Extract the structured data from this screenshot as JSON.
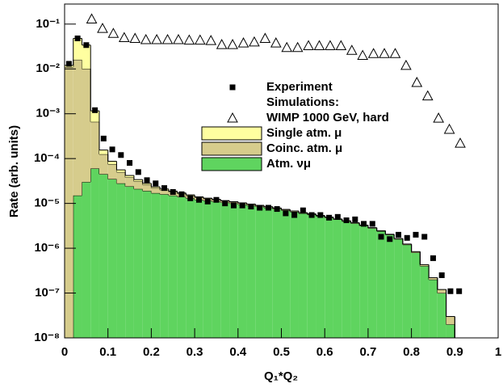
{
  "chart_data": {
    "type": "histogram",
    "x_label": "Q₁*Q₂",
    "y_label": "Rate (arb. units)",
    "xlim": [
      0,
      1
    ],
    "xticks": [
      0,
      0.1,
      0.2,
      0.3,
      0.4,
      0.5,
      0.6,
      0.7,
      0.8,
      0.9,
      1
    ],
    "log_y": true,
    "ylim": [
      1e-08,
      0.28
    ],
    "yticks": [
      {
        "value": 1e-08,
        "label": "10⁻⁸"
      },
      {
        "value": 1e-07,
        "label": "10⁻⁷"
      },
      {
        "value": 1e-06,
        "label": "10⁻⁶"
      },
      {
        "value": 1e-05,
        "label": "10⁻⁵"
      },
      {
        "value": 0.0001,
        "label": "10⁻⁴"
      },
      {
        "value": 0.001,
        "label": "10⁻³"
      },
      {
        "value": 0.01,
        "label": "10⁻²"
      },
      {
        "value": 0.1,
        "label": "10⁻¹"
      }
    ],
    "bins": [
      0,
      0.02,
      0.04,
      0.06,
      0.08,
      0.1,
      0.12,
      0.14,
      0.16,
      0.18,
      0.2,
      0.22,
      0.24,
      0.26,
      0.28,
      0.3,
      0.32,
      0.34,
      0.36,
      0.38,
      0.4,
      0.42,
      0.44,
      0.46,
      0.48,
      0.5,
      0.52,
      0.54,
      0.56,
      0.58,
      0.6,
      0.62,
      0.64,
      0.66,
      0.68,
      0.7,
      0.72,
      0.74,
      0.76,
      0.78,
      0.8,
      0.82,
      0.84,
      0.86,
      0.88,
      0.9,
      0.92
    ],
    "series": [
      {
        "name": "Single atm. μ",
        "color": "#ffffa0",
        "values": [
          0.001,
          0.032,
          0.024,
          0.0005,
          3e-05,
          1.2e-05,
          6e-06,
          4e-06,
          3e-06,
          2e-06,
          1.5e-06,
          1e-06,
          8e-07,
          6e-07,
          5e-07,
          4e-07,
          3e-07,
          2e-07,
          1.5e-07,
          1e-07,
          8e-08,
          6e-08,
          5e-08,
          4e-08,
          3e-08,
          2e-08,
          2e-08,
          1e-08,
          1e-08,
          1e-08,
          0,
          0,
          0,
          0,
          0,
          0,
          0,
          0,
          0,
          0,
          0,
          0,
          0,
          0,
          0,
          0
        ]
      },
      {
        "name": "Coinc. atm. μ",
        "color": "#d6cc8c",
        "values": [
          0.011,
          0.016,
          0.01,
          0.0006,
          8e-05,
          4e-05,
          2.2e-05,
          1.4e-05,
          1e-05,
          7e-06,
          5e-06,
          4e-06,
          3e-06,
          2.5e-06,
          2e-06,
          1.6e-06,
          1.3e-06,
          1.1e-06,
          9e-07,
          8e-07,
          7e-07,
          6e-07,
          5e-07,
          4e-07,
          3.5e-07,
          3e-07,
          2.5e-07,
          2e-07,
          2e-07,
          1.5e-07,
          1.5e-07,
          1e-07,
          1e-07,
          1e-07,
          8e-08,
          8e-08,
          6e-08,
          5e-08,
          5e-08,
          4e-08,
          4e-08,
          3e-08,
          2e-08,
          2e-08,
          1e-08,
          0
        ]
      },
      {
        "name": "Atm. νμ",
        "color": "#5fd45f",
        "values": [
          0,
          1.5e-05,
          3e-05,
          6e-05,
          4.5e-05,
          3.5e-05,
          2.8e-05,
          2.4e-05,
          2.1e-05,
          1.9e-05,
          1.7e-05,
          1.6e-05,
          1.5e-05,
          1.4e-05,
          1.3e-05,
          1.2e-05,
          1.15e-05,
          1.1e-05,
          1.05e-05,
          1e-05,
          9.5e-06,
          9e-06,
          8.5e-06,
          8e-06,
          7.5e-06,
          7e-06,
          6.5e-06,
          6e-06,
          5.6e-06,
          5.2e-06,
          4.8e-06,
          4.4e-06,
          4e-06,
          3.6e-06,
          3.2e-06,
          2.8e-06,
          2.4e-06,
          2e-06,
          1.6e-06,
          1.2e-06,
          8e-07,
          4e-07,
          2e-07,
          1e-07,
          2e-08,
          0
        ]
      }
    ],
    "points": [
      {
        "name": "Experiment",
        "marker": "square",
        "color": "#000000",
        "x": [
          0.01,
          0.03,
          0.05,
          0.07,
          0.09,
          0.11,
          0.13,
          0.15,
          0.17,
          0.19,
          0.21,
          0.23,
          0.25,
          0.27,
          0.29,
          0.31,
          0.33,
          0.35,
          0.37,
          0.39,
          0.41,
          0.43,
          0.45,
          0.47,
          0.49,
          0.51,
          0.53,
          0.55,
          0.57,
          0.59,
          0.61,
          0.63,
          0.65,
          0.67,
          0.69,
          0.71,
          0.73,
          0.75,
          0.77,
          0.79,
          0.81,
          0.83,
          0.85,
          0.87,
          0.89,
          0.91
        ],
        "values": [
          0.013,
          0.048,
          0.034,
          0.0012,
          0.00028,
          0.00016,
          0.00012,
          8e-05,
          5e-05,
          3.3e-05,
          2.8e-05,
          2.2e-05,
          1.8e-05,
          1.6e-05,
          1.3e-05,
          1.2e-05,
          1.1e-05,
          1.2e-05,
          1e-05,
          9e-06,
          9e-06,
          8.5e-06,
          8e-06,
          8e-06,
          7.5e-06,
          6e-06,
          5.5e-06,
          7e-06,
          5.5e-06,
          5.5e-06,
          4.8e-06,
          5e-06,
          4.2e-06,
          4.4e-06,
          3.5e-06,
          3.5e-06,
          1.8e-06,
          1.6e-06,
          2e-06,
          1.7e-06,
          2e-06,
          1.8e-06,
          6e-07,
          2.5e-07,
          1.1e-07,
          1.1e-07
        ]
      },
      {
        "name": "WIMP 1000 GeV, hard",
        "marker": "triangle",
        "color": "#000000",
        "x": [
          0.0625,
          0.0875,
          0.1125,
          0.1375,
          0.1625,
          0.1875,
          0.2125,
          0.2375,
          0.2625,
          0.2875,
          0.3125,
          0.3375,
          0.3625,
          0.3875,
          0.4125,
          0.4375,
          0.4625,
          0.4875,
          0.5125,
          0.5375,
          0.5625,
          0.5875,
          0.6125,
          0.6375,
          0.6625,
          0.6875,
          0.7125,
          0.7375,
          0.7625,
          0.7875,
          0.8125,
          0.8375,
          0.8625,
          0.8875,
          0.9125
        ],
        "values": [
          0.13,
          0.08,
          0.062,
          0.05,
          0.048,
          0.045,
          0.045,
          0.045,
          0.045,
          0.044,
          0.044,
          0.043,
          0.035,
          0.035,
          0.038,
          0.04,
          0.048,
          0.038,
          0.03,
          0.03,
          0.033,
          0.033,
          0.033,
          0.033,
          0.026,
          0.02,
          0.022,
          0.022,
          0.022,
          0.012,
          0.005,
          0.0025,
          0.0008,
          0.00045,
          0.00022
        ]
      }
    ],
    "legend_note": "Simulations:"
  }
}
